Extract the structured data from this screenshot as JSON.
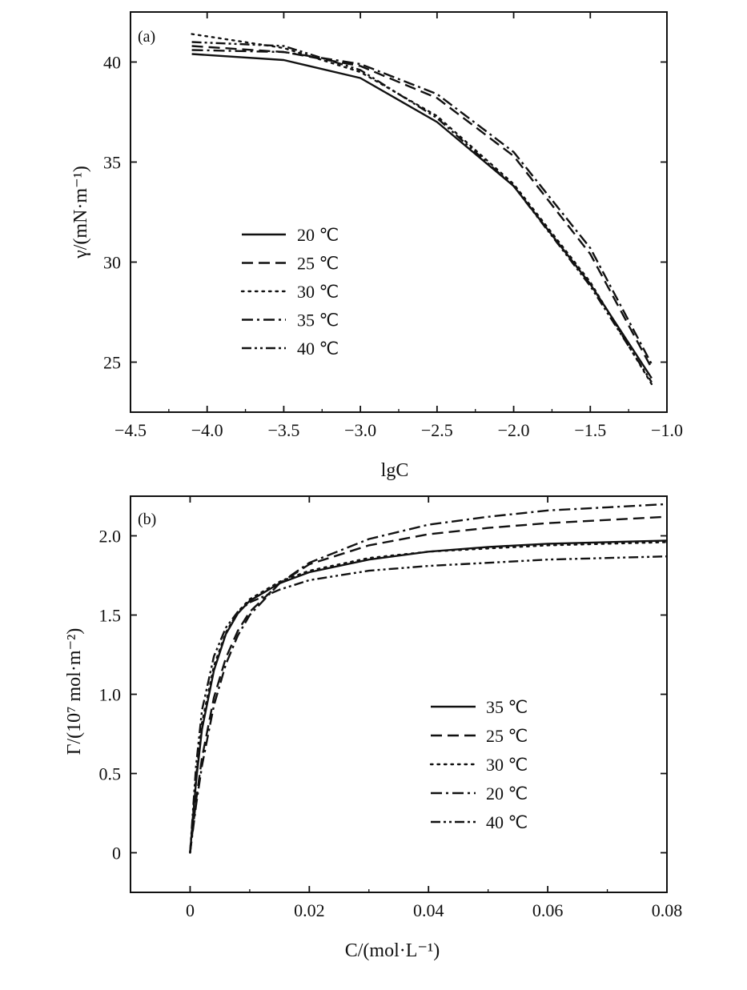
{
  "chart_data": [
    {
      "panel_label": "(a)",
      "type": "line",
      "xlabel": "lgC",
      "ylabel": "γ/(mN·m⁻¹)",
      "xlim": [
        -4.5,
        -1.0
      ],
      "ylim": [
        22.5,
        42.5
      ],
      "xticks": [
        -4.5,
        -4.0,
        -3.5,
        -3.0,
        -2.5,
        -2.0,
        -1.5,
        -1.0
      ],
      "xtick_labels": [
        "−4.5",
        "−4.0",
        "−3.5",
        "−3.0",
        "−2.5",
        "−2.0",
        "−1.5",
        "−1.0"
      ],
      "yticks": [
        25,
        30,
        35,
        40
      ],
      "ytick_labels": [
        "25",
        "30",
        "35",
        "40"
      ],
      "legend": {
        "position": "center-left",
        "entries": [
          "20 ℃",
          "25 ℃",
          "30 ℃",
          "35 ℃",
          "40 ℃"
        ]
      },
      "grid": false,
      "series": [
        {
          "name": "20 ℃",
          "style": "solid",
          "points": [
            [
              -4.1,
              40.4
            ],
            [
              -3.5,
              40.1
            ],
            [
              -3.0,
              39.2
            ],
            [
              -2.5,
              37.0
            ],
            [
              -2.0,
              33.8
            ],
            [
              -1.5,
              28.9
            ],
            [
              -1.1,
              24.2
            ]
          ]
        },
        {
          "name": "25 ℃",
          "style": "dash",
          "points": [
            [
              -4.1,
              40.8
            ],
            [
              -3.5,
              40.5
            ],
            [
              -3.0,
              39.8
            ],
            [
              -2.5,
              38.2
            ],
            [
              -2.0,
              35.3
            ],
            [
              -1.5,
              30.4
            ],
            [
              -1.1,
              24.7
            ]
          ]
        },
        {
          "name": "30 ℃",
          "style": "dot",
          "points": [
            [
              -4.1,
              41.4
            ],
            [
              -3.5,
              40.7
            ],
            [
              -3.0,
              39.5
            ],
            [
              -2.5,
              37.3
            ],
            [
              -2.0,
              33.9
            ],
            [
              -1.5,
              29.0
            ],
            [
              -1.1,
              23.9
            ]
          ]
        },
        {
          "name": "35 ℃",
          "style": "dashdot",
          "points": [
            [
              -4.1,
              40.6
            ],
            [
              -3.5,
              40.5
            ],
            [
              -3.0,
              39.9
            ],
            [
              -2.5,
              38.4
            ],
            [
              -2.0,
              35.5
            ],
            [
              -1.5,
              30.7
            ],
            [
              -1.1,
              24.9
            ]
          ]
        },
        {
          "name": "40 ℃",
          "style": "dashdotdot",
          "points": [
            [
              -4.1,
              41.0
            ],
            [
              -3.5,
              40.8
            ],
            [
              -3.0,
              39.6
            ],
            [
              -2.5,
              37.2
            ],
            [
              -2.0,
              33.8
            ],
            [
              -1.5,
              28.8
            ],
            [
              -1.1,
              24.0
            ]
          ]
        }
      ]
    },
    {
      "panel_label": "(b)",
      "type": "line",
      "xlabel": "C/(mol·L⁻¹)",
      "ylabel": "Γ/(10⁷ mol·m⁻²)",
      "xlim": [
        -0.01,
        0.08
      ],
      "ylim": [
        -0.25,
        2.25
      ],
      "xticks": [
        0,
        0.02,
        0.04,
        0.06,
        0.08
      ],
      "xtick_labels": [
        "0",
        "0.02",
        "0.04",
        "0.06",
        "0.08"
      ],
      "yticks": [
        0,
        0.5,
        1.0,
        1.5,
        2.0
      ],
      "ytick_labels": [
        "0",
        "0.5",
        "1.0",
        "1.5",
        "2.0"
      ],
      "legend": {
        "position": "center-right",
        "entries": [
          "35 ℃",
          "25 ℃",
          "30 ℃",
          "20 ℃",
          "40 ℃"
        ]
      },
      "grid": false,
      "series": [
        {
          "name": "35 ℃",
          "style": "solid",
          "points": [
            [
              0,
              0
            ],
            [
              0.001,
              0.45
            ],
            [
              0.002,
              0.78
            ],
            [
              0.004,
              1.15
            ],
            [
              0.006,
              1.38
            ],
            [
              0.008,
              1.51
            ],
            [
              0.01,
              1.59
            ],
            [
              0.015,
              1.7
            ],
            [
              0.02,
              1.77
            ],
            [
              0.03,
              1.85
            ],
            [
              0.04,
              1.9
            ],
            [
              0.05,
              1.93
            ],
            [
              0.06,
              1.95
            ],
            [
              0.07,
              1.96
            ],
            [
              0.08,
              1.97
            ]
          ]
        },
        {
          "name": "25 ℃",
          "style": "dash",
          "points": [
            [
              0,
              0
            ],
            [
              0.001,
              0.33
            ],
            [
              0.002,
              0.6
            ],
            [
              0.004,
              0.98
            ],
            [
              0.006,
              1.23
            ],
            [
              0.008,
              1.4
            ],
            [
              0.01,
              1.52
            ],
            [
              0.015,
              1.7
            ],
            [
              0.02,
              1.82
            ],
            [
              0.03,
              1.94
            ],
            [
              0.04,
              2.01
            ],
            [
              0.05,
              2.05
            ],
            [
              0.06,
              2.08
            ],
            [
              0.07,
              2.1
            ],
            [
              0.08,
              2.12
            ]
          ]
        },
        {
          "name": "30 ℃",
          "style": "dot",
          "points": [
            [
              0,
              0
            ],
            [
              0.001,
              0.48
            ],
            [
              0.002,
              0.82
            ],
            [
              0.004,
              1.18
            ],
            [
              0.006,
              1.39
            ],
            [
              0.008,
              1.52
            ],
            [
              0.01,
              1.6
            ],
            [
              0.015,
              1.71
            ],
            [
              0.02,
              1.78
            ],
            [
              0.03,
              1.86
            ],
            [
              0.04,
              1.9
            ],
            [
              0.05,
              1.92
            ],
            [
              0.06,
              1.94
            ],
            [
              0.07,
              1.95
            ],
            [
              0.08,
              1.96
            ]
          ]
        },
        {
          "name": "20 ℃",
          "style": "dashdot",
          "points": [
            [
              0,
              0
            ],
            [
              0.001,
              0.3
            ],
            [
              0.002,
              0.55
            ],
            [
              0.004,
              0.93
            ],
            [
              0.006,
              1.19
            ],
            [
              0.008,
              1.37
            ],
            [
              0.01,
              1.5
            ],
            [
              0.015,
              1.7
            ],
            [
              0.02,
              1.83
            ],
            [
              0.03,
              1.98
            ],
            [
              0.04,
              2.07
            ],
            [
              0.05,
              2.12
            ],
            [
              0.06,
              2.16
            ],
            [
              0.07,
              2.18
            ],
            [
              0.08,
              2.2
            ]
          ]
        },
        {
          "name": "40 ℃",
          "style": "dashdotdot",
          "points": [
            [
              0,
              0
            ],
            [
              0.001,
              0.55
            ],
            [
              0.002,
              0.9
            ],
            [
              0.004,
              1.24
            ],
            [
              0.006,
              1.42
            ],
            [
              0.008,
              1.52
            ],
            [
              0.01,
              1.58
            ],
            [
              0.015,
              1.66
            ],
            [
              0.02,
              1.72
            ],
            [
              0.03,
              1.78
            ],
            [
              0.04,
              1.81
            ],
            [
              0.05,
              1.83
            ],
            [
              0.06,
              1.85
            ],
            [
              0.07,
              1.86
            ],
            [
              0.08,
              1.87
            ]
          ]
        }
      ]
    }
  ]
}
